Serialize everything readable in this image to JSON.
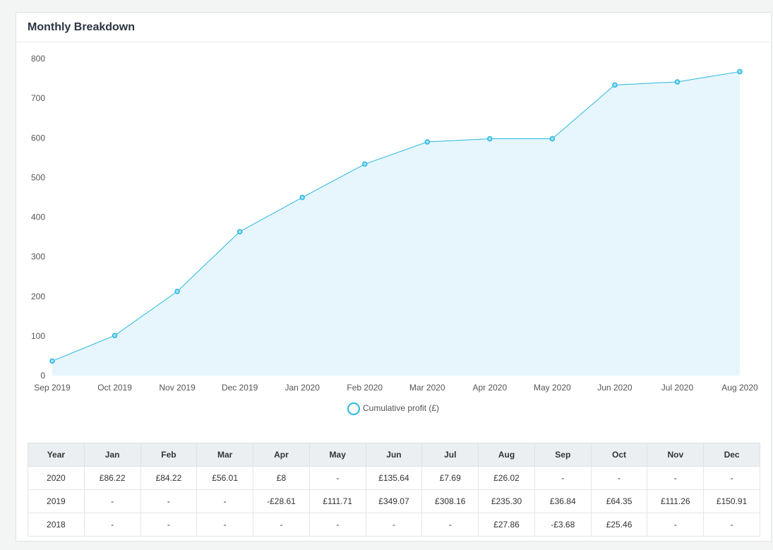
{
  "panel": {
    "title": "Monthly Breakdown"
  },
  "colors": {
    "line": "#29b7e0",
    "fill": "#e6f6fc",
    "marker_fill": "#9fe0f3"
  },
  "chart_data": {
    "type": "area",
    "x": [
      "Sep 2019",
      "Oct 2019",
      "Nov 2019",
      "Dec 2019",
      "Jan 2020",
      "Feb 2020",
      "Mar 2020",
      "Apr 2020",
      "May 2020",
      "Jun 2020",
      "Jul 2020",
      "Aug 2020"
    ],
    "series": [
      {
        "name": "Cumulative profit (£)",
        "values": [
          36.84,
          101.19,
          212.45,
          363.36,
          449.58,
          533.8,
          589.81,
          597.81,
          597.81,
          733.45,
          741.14,
          767.16
        ]
      }
    ],
    "ylim": [
      0,
      800
    ],
    "yticks": [
      0,
      100,
      200,
      300,
      400,
      500,
      600,
      700,
      800
    ],
    "grid": false,
    "legend": "bottom-center"
  },
  "table": {
    "headers": [
      "Year",
      "Jan",
      "Feb",
      "Mar",
      "Apr",
      "May",
      "Jun",
      "Jul",
      "Aug",
      "Sep",
      "Oct",
      "Nov",
      "Dec"
    ],
    "rows": [
      [
        "2020",
        "£86.22",
        "£84.22",
        "£56.01",
        "£8",
        "-",
        "£135.64",
        "£7.69",
        "£26.02",
        "-",
        "-",
        "-",
        "-"
      ],
      [
        "2019",
        "-",
        "-",
        "-",
        "-£28.61",
        "£111.71",
        "£349.07",
        "£308.16",
        "£235.30",
        "£36.84",
        "£64.35",
        "£111.26",
        "£150.91"
      ],
      [
        "2018",
        "-",
        "-",
        "-",
        "-",
        "-",
        "-",
        "-",
        "£27.86",
        "-£3.68",
        "£25.46",
        "-",
        "-"
      ]
    ]
  }
}
